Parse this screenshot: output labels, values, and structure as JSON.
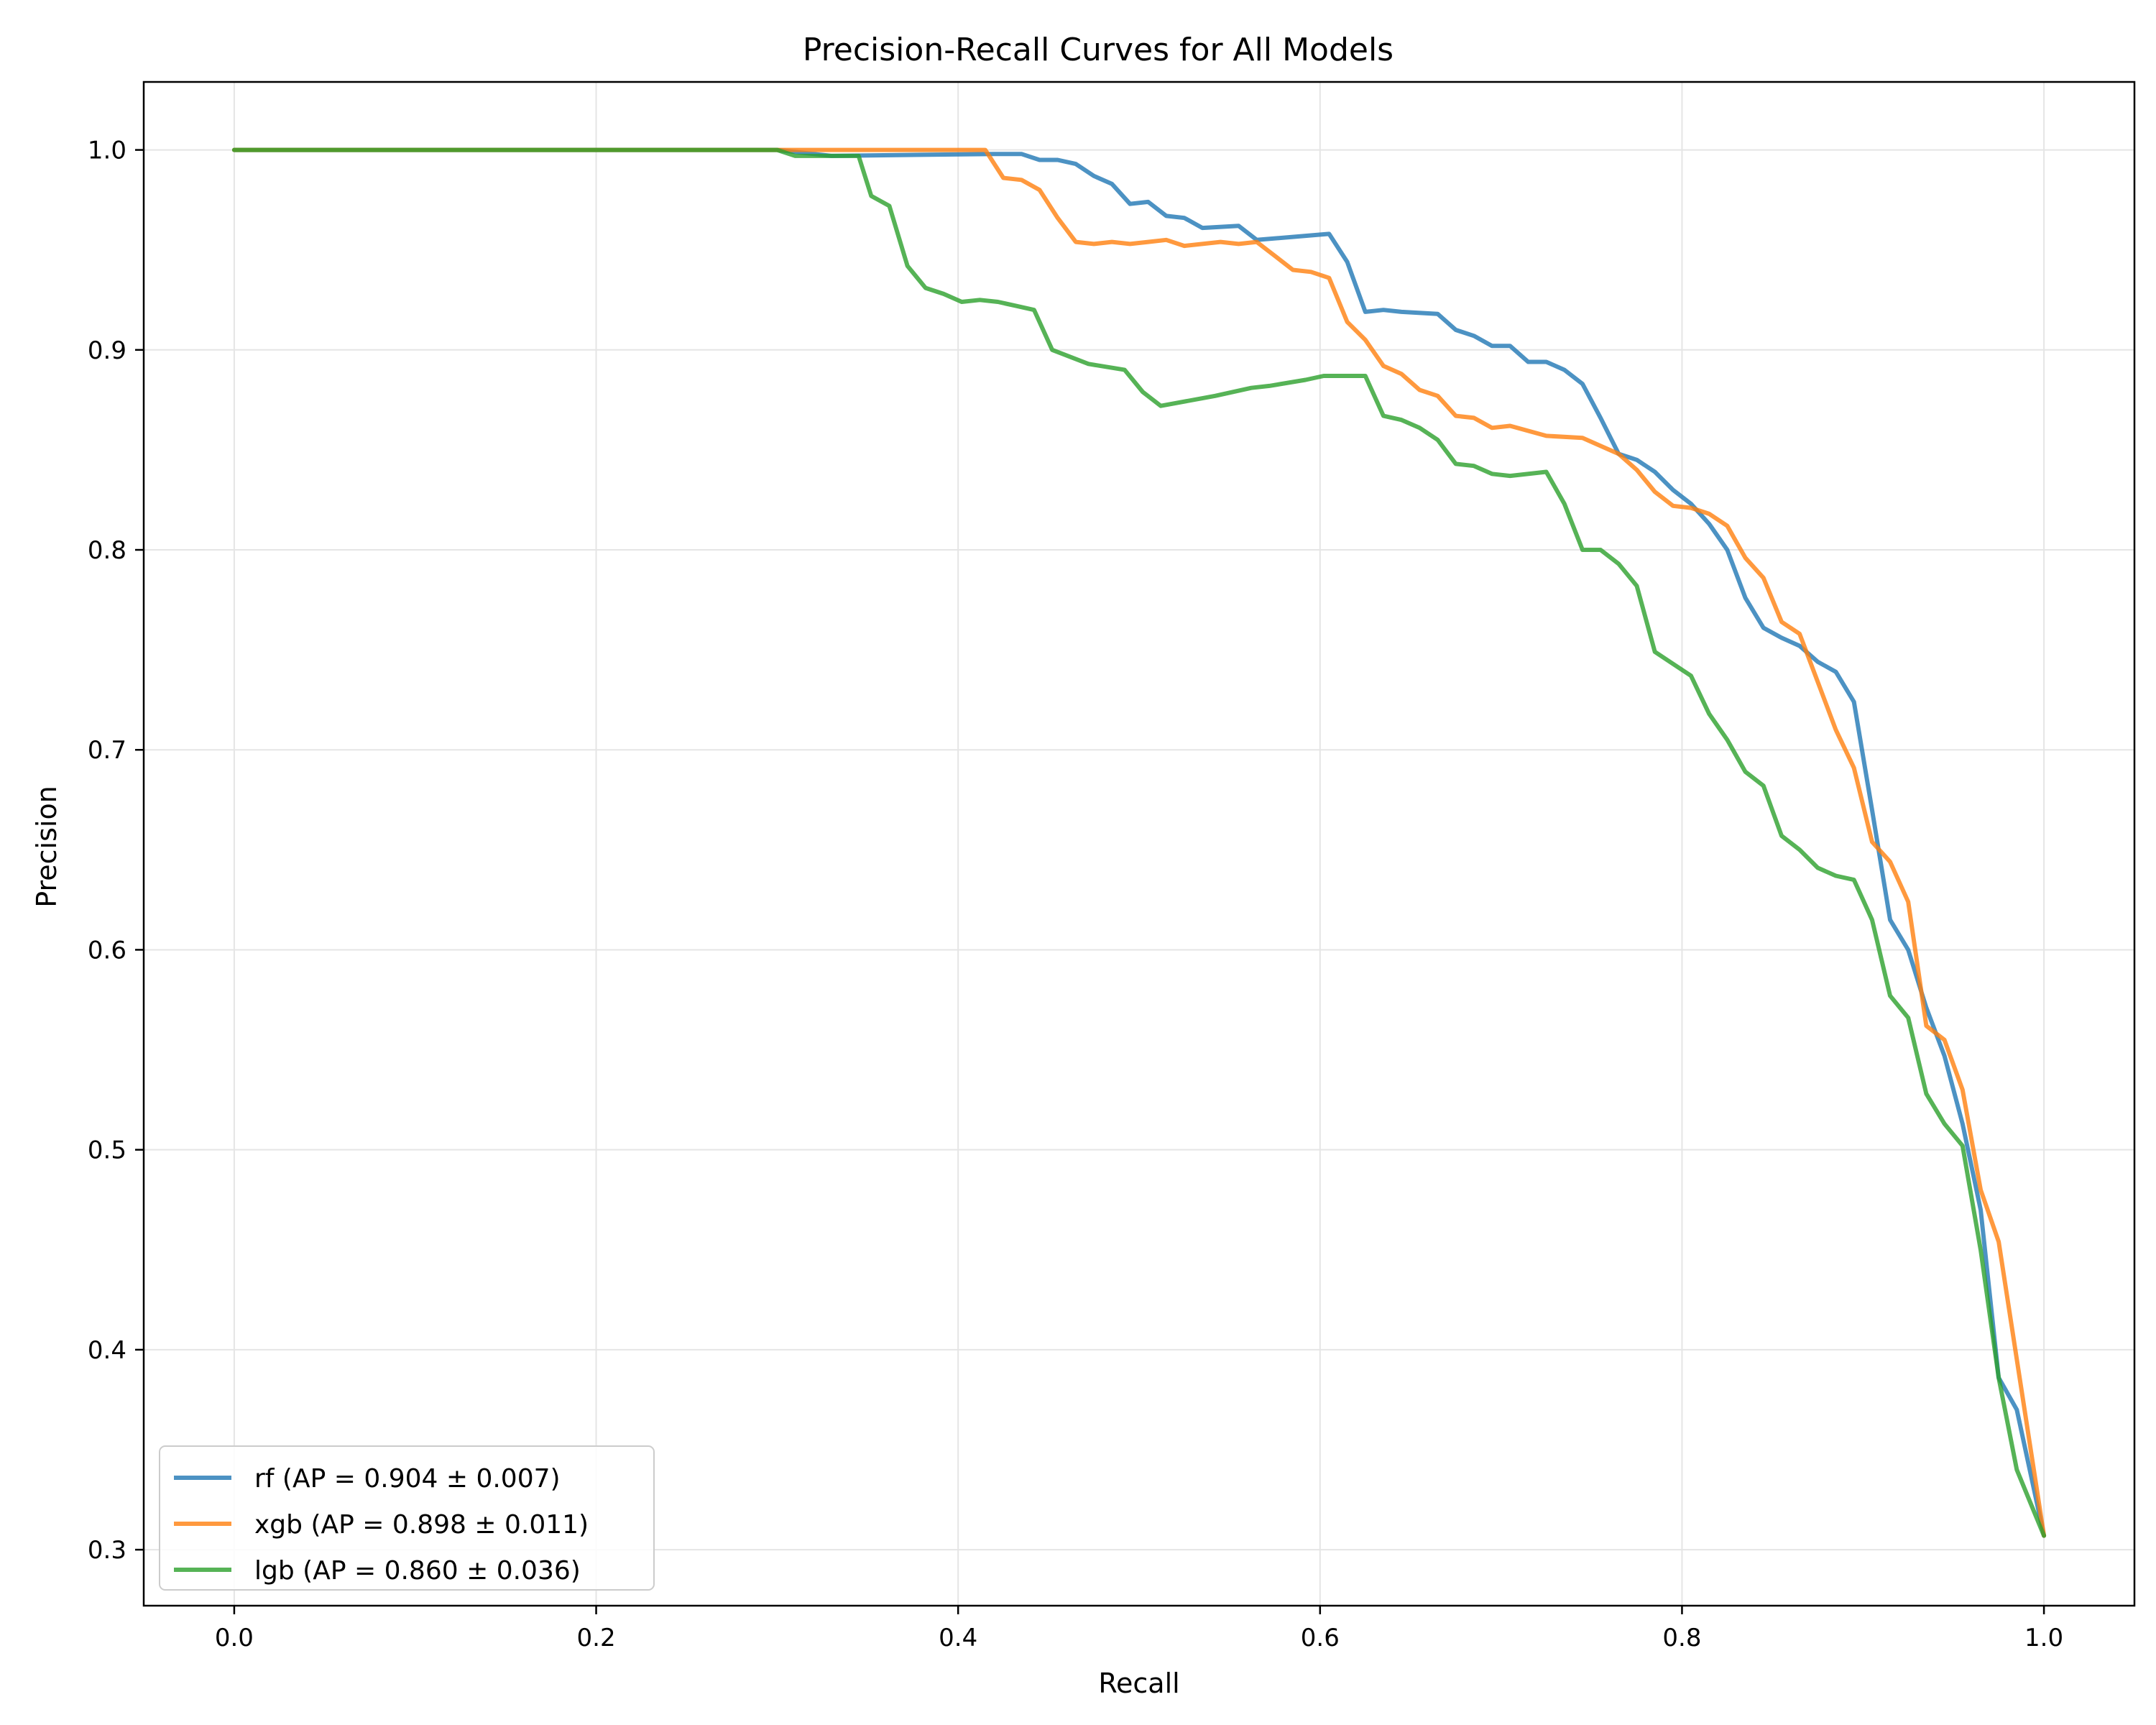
{
  "chart_data": {
    "type": "line",
    "title": "Precision-Recall Curves for All Models",
    "xlabel": "Recall",
    "ylabel": "Precision",
    "xlim": [
      -0.05,
      1.05
    ],
    "ylim": [
      0.272,
      1.034
    ],
    "xticks": [
      0.0,
      0.2,
      0.4,
      0.6,
      0.8,
      1.0
    ],
    "xtick_labels": [
      "0.0",
      "0.2",
      "0.4",
      "0.6",
      "0.8",
      "1.0"
    ],
    "yticks": [
      0.3,
      0.4,
      0.5,
      0.6,
      0.7,
      0.8,
      0.9,
      1.0
    ],
    "ytick_labels": [
      "0.3",
      "0.4",
      "0.5",
      "0.6",
      "0.7",
      "0.8",
      "0.9",
      "1.0"
    ],
    "grid": true,
    "legend_position": "lower-left",
    "series": [
      {
        "name": "rf (AP = 0.904 ± 0.007)",
        "color": "#1f77b4",
        "points": [
          [
            0.0,
            1.0
          ],
          [
            0.3,
            1.0
          ],
          [
            0.33,
            0.997
          ],
          [
            0.42,
            0.998
          ],
          [
            0.435,
            0.998
          ],
          [
            0.445,
            0.995
          ],
          [
            0.455,
            0.995
          ],
          [
            0.465,
            0.993
          ],
          [
            0.475,
            0.987
          ],
          [
            0.485,
            0.983
          ],
          [
            0.495,
            0.973
          ],
          [
            0.505,
            0.974
          ],
          [
            0.515,
            0.967
          ],
          [
            0.525,
            0.966
          ],
          [
            0.535,
            0.961
          ],
          [
            0.555,
            0.962
          ],
          [
            0.565,
            0.955
          ],
          [
            0.605,
            0.958
          ],
          [
            0.615,
            0.944
          ],
          [
            0.625,
            0.919
          ],
          [
            0.635,
            0.92
          ],
          [
            0.645,
            0.919
          ],
          [
            0.665,
            0.918
          ],
          [
            0.675,
            0.91
          ],
          [
            0.685,
            0.907
          ],
          [
            0.695,
            0.902
          ],
          [
            0.705,
            0.902
          ],
          [
            0.715,
            0.894
          ],
          [
            0.725,
            0.894
          ],
          [
            0.735,
            0.89
          ],
          [
            0.745,
            0.883
          ],
          [
            0.755,
            0.866
          ],
          [
            0.765,
            0.848
          ],
          [
            0.775,
            0.845
          ],
          [
            0.785,
            0.839
          ],
          [
            0.795,
            0.83
          ],
          [
            0.805,
            0.823
          ],
          [
            0.815,
            0.813
          ],
          [
            0.825,
            0.8
          ],
          [
            0.835,
            0.776
          ],
          [
            0.845,
            0.761
          ],
          [
            0.855,
            0.756
          ],
          [
            0.865,
            0.752
          ],
          [
            0.875,
            0.744
          ],
          [
            0.885,
            0.739
          ],
          [
            0.895,
            0.724
          ],
          [
            0.905,
            0.67
          ],
          [
            0.915,
            0.615
          ],
          [
            0.925,
            0.6
          ],
          [
            0.935,
            0.571
          ],
          [
            0.945,
            0.547
          ],
          [
            0.955,
            0.513
          ],
          [
            0.965,
            0.47
          ],
          [
            0.975,
            0.386
          ],
          [
            0.985,
            0.37
          ],
          [
            1.0,
            0.307
          ]
        ]
      },
      {
        "name": "xgb (AP = 0.898 ± 0.011)",
        "color": "#ff7f0e",
        "points": [
          [
            0.0,
            1.0
          ],
          [
            0.3,
            1.0
          ],
          [
            0.415,
            1.0
          ],
          [
            0.425,
            0.986
          ],
          [
            0.435,
            0.985
          ],
          [
            0.445,
            0.98
          ],
          [
            0.455,
            0.966
          ],
          [
            0.465,
            0.954
          ],
          [
            0.475,
            0.953
          ],
          [
            0.485,
            0.954
          ],
          [
            0.495,
            0.953
          ],
          [
            0.505,
            0.954
          ],
          [
            0.515,
            0.955
          ],
          [
            0.525,
            0.952
          ],
          [
            0.545,
            0.954
          ],
          [
            0.555,
            0.953
          ],
          [
            0.565,
            0.954
          ],
          [
            0.575,
            0.947
          ],
          [
            0.585,
            0.94
          ],
          [
            0.595,
            0.939
          ],
          [
            0.605,
            0.936
          ],
          [
            0.615,
            0.914
          ],
          [
            0.625,
            0.905
          ],
          [
            0.635,
            0.892
          ],
          [
            0.645,
            0.888
          ],
          [
            0.655,
            0.88
          ],
          [
            0.665,
            0.877
          ],
          [
            0.675,
            0.867
          ],
          [
            0.685,
            0.866
          ],
          [
            0.695,
            0.861
          ],
          [
            0.705,
            0.862
          ],
          [
            0.725,
            0.857
          ],
          [
            0.745,
            0.856
          ],
          [
            0.755,
            0.852
          ],
          [
            0.765,
            0.848
          ],
          [
            0.775,
            0.84
          ],
          [
            0.785,
            0.829
          ],
          [
            0.795,
            0.822
          ],
          [
            0.805,
            0.821
          ],
          [
            0.815,
            0.818
          ],
          [
            0.825,
            0.812
          ],
          [
            0.835,
            0.796
          ],
          [
            0.845,
            0.786
          ],
          [
            0.855,
            0.764
          ],
          [
            0.865,
            0.758
          ],
          [
            0.875,
            0.734
          ],
          [
            0.885,
            0.71
          ],
          [
            0.895,
            0.691
          ],
          [
            0.905,
            0.654
          ],
          [
            0.915,
            0.644
          ],
          [
            0.925,
            0.624
          ],
          [
            0.935,
            0.562
          ],
          [
            0.945,
            0.555
          ],
          [
            0.955,
            0.53
          ],
          [
            0.965,
            0.48
          ],
          [
            0.975,
            0.454
          ],
          [
            1.0,
            0.307
          ]
        ]
      },
      {
        "name": "lgb (AP = 0.860 ± 0.036)",
        "color": "#2ca02c",
        "points": [
          [
            0.0,
            1.0
          ],
          [
            0.3,
            1.0
          ],
          [
            0.31,
            0.997
          ],
          [
            0.345,
            0.997
          ],
          [
            0.352,
            0.977
          ],
          [
            0.362,
            0.972
          ],
          [
            0.372,
            0.942
          ],
          [
            0.382,
            0.931
          ],
          [
            0.392,
            0.928
          ],
          [
            0.402,
            0.924
          ],
          [
            0.412,
            0.925
          ],
          [
            0.422,
            0.924
          ],
          [
            0.432,
            0.922
          ],
          [
            0.442,
            0.92
          ],
          [
            0.452,
            0.9
          ],
          [
            0.472,
            0.893
          ],
          [
            0.492,
            0.89
          ],
          [
            0.502,
            0.879
          ],
          [
            0.512,
            0.872
          ],
          [
            0.542,
            0.877
          ],
          [
            0.562,
            0.881
          ],
          [
            0.572,
            0.882
          ],
          [
            0.592,
            0.885
          ],
          [
            0.602,
            0.887
          ],
          [
            0.612,
            0.887
          ],
          [
            0.625,
            0.887
          ],
          [
            0.635,
            0.867
          ],
          [
            0.645,
            0.865
          ],
          [
            0.655,
            0.861
          ],
          [
            0.665,
            0.855
          ],
          [
            0.675,
            0.843
          ],
          [
            0.685,
            0.842
          ],
          [
            0.695,
            0.838
          ],
          [
            0.705,
            0.837
          ],
          [
            0.725,
            0.839
          ],
          [
            0.735,
            0.823
          ],
          [
            0.745,
            0.8
          ],
          [
            0.755,
            0.8
          ],
          [
            0.765,
            0.793
          ],
          [
            0.775,
            0.782
          ],
          [
            0.785,
            0.749
          ],
          [
            0.795,
            0.743
          ],
          [
            0.805,
            0.737
          ],
          [
            0.815,
            0.718
          ],
          [
            0.825,
            0.705
          ],
          [
            0.835,
            0.689
          ],
          [
            0.845,
            0.682
          ],
          [
            0.855,
            0.657
          ],
          [
            0.865,
            0.65
          ],
          [
            0.875,
            0.641
          ],
          [
            0.885,
            0.637
          ],
          [
            0.895,
            0.635
          ],
          [
            0.905,
            0.615
          ],
          [
            0.915,
            0.577
          ],
          [
            0.925,
            0.566
          ],
          [
            0.935,
            0.528
          ],
          [
            0.945,
            0.513
          ],
          [
            0.955,
            0.502
          ],
          [
            0.965,
            0.45
          ],
          [
            0.975,
            0.386
          ],
          [
            0.985,
            0.34
          ],
          [
            1.0,
            0.307
          ]
        ]
      }
    ]
  }
}
